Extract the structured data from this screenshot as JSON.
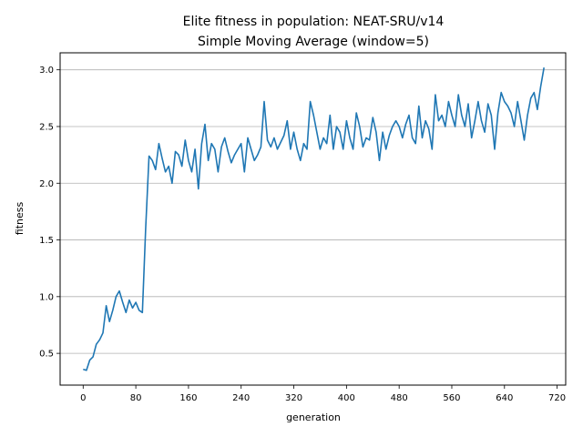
{
  "chart_data": {
    "type": "line",
    "title": "Elite fitness in population: NEAT-SRU/v14",
    "subtitle": "Simple Moving Average (window=5)",
    "xlabel": "generation",
    "ylabel": "fitness",
    "xlim": [
      -35,
      733
    ],
    "ylim": [
      0.22,
      3.15
    ],
    "xticks": [
      0,
      80,
      160,
      240,
      320,
      400,
      480,
      560,
      640,
      720
    ],
    "yticks": [
      0.5,
      1.0,
      1.5,
      2.0,
      2.5,
      3.0
    ],
    "ytick_labels": [
      "0.5",
      "1.0",
      "1.5",
      "2.0",
      "2.5",
      "3.0"
    ],
    "grid": "horizontal",
    "line_color": "#1f77b4",
    "series": [
      {
        "x": [
          0,
          5,
          10,
          15,
          20,
          25,
          30,
          35,
          40,
          45,
          50,
          55,
          60,
          65,
          70,
          75,
          80,
          85,
          90,
          95,
          100,
          105,
          110,
          115,
          120,
          125,
          130,
          135,
          140,
          145,
          150,
          155,
          160,
          165,
          170,
          175,
          180,
          185,
          190,
          195,
          200,
          205,
          210,
          215,
          220,
          225,
          230,
          235,
          240,
          245,
          250,
          255,
          260,
          265,
          270,
          275,
          280,
          285,
          290,
          295,
          300,
          305,
          310,
          315,
          320,
          325,
          330,
          335,
          340,
          345,
          350,
          355,
          360,
          365,
          370,
          375,
          380,
          385,
          390,
          395,
          400,
          405,
          410,
          415,
          420,
          425,
          430,
          435,
          440,
          445,
          450,
          455,
          460,
          465,
          470,
          475,
          480,
          485,
          490,
          495,
          500,
          505,
          510,
          515,
          520,
          525,
          530,
          535,
          540,
          545,
          550,
          555,
          560,
          565,
          570,
          575,
          580,
          585,
          590,
          595,
          600,
          605,
          610,
          615,
          620,
          625,
          630,
          635,
          640,
          645,
          650,
          655,
          660,
          665,
          670,
          675,
          680,
          685,
          690,
          695,
          700
        ],
        "values": [
          0.36,
          0.35,
          0.44,
          0.47,
          0.58,
          0.62,
          0.68,
          0.92,
          0.78,
          0.88,
          1.0,
          1.05,
          0.95,
          0.86,
          0.97,
          0.9,
          0.95,
          0.88,
          0.86,
          1.6,
          2.24,
          2.2,
          2.12,
          2.35,
          2.22,
          2.1,
          2.15,
          2.0,
          2.28,
          2.25,
          2.15,
          2.38,
          2.2,
          2.1,
          2.3,
          1.95,
          2.35,
          2.52,
          2.2,
          2.35,
          2.3,
          2.1,
          2.32,
          2.4,
          2.28,
          2.18,
          2.25,
          2.3,
          2.35,
          2.1,
          2.4,
          2.3,
          2.2,
          2.25,
          2.32,
          2.72,
          2.38,
          2.32,
          2.4,
          2.3,
          2.36,
          2.42,
          2.55,
          2.3,
          2.45,
          2.3,
          2.2,
          2.35,
          2.3,
          2.72,
          2.6,
          2.45,
          2.3,
          2.4,
          2.35,
          2.6,
          2.3,
          2.5,
          2.45,
          2.3,
          2.55,
          2.4,
          2.3,
          2.62,
          2.5,
          2.32,
          2.4,
          2.38,
          2.58,
          2.45,
          2.2,
          2.45,
          2.3,
          2.42,
          2.5,
          2.55,
          2.5,
          2.4,
          2.52,
          2.6,
          2.4,
          2.35,
          2.68,
          2.4,
          2.55,
          2.48,
          2.3,
          2.78,
          2.55,
          2.6,
          2.5,
          2.72,
          2.6,
          2.5,
          2.78,
          2.6,
          2.5,
          2.7,
          2.4,
          2.55,
          2.72,
          2.55,
          2.45,
          2.7,
          2.6,
          2.3,
          2.62,
          2.8,
          2.72,
          2.68,
          2.62,
          2.5,
          2.72,
          2.55,
          2.38,
          2.6,
          2.75,
          2.8,
          2.65,
          2.85,
          3.02
        ]
      }
    ]
  }
}
